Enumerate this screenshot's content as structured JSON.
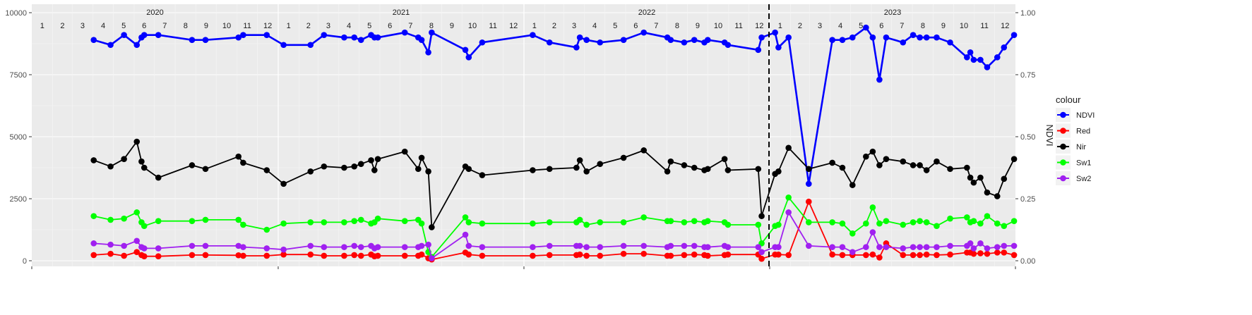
{
  "chart_data": {
    "type": "line",
    "xlabel": "",
    "ylabel": "",
    "y2label": "NDVI",
    "ylim": [
      0,
      10000
    ],
    "y2lim": [
      0,
      1
    ],
    "yticks": [
      0,
      2500,
      5000,
      7500,
      10000
    ],
    "y2ticks": [
      "0.00",
      "0.25",
      "0.50",
      "0.75",
      "1.00"
    ],
    "years": [
      "2020",
      "2021",
      "2022",
      "2023"
    ],
    "month_labels": [
      "1",
      "2",
      "3",
      "4",
      "5",
      "6",
      "7",
      "8",
      "9",
      "10",
      "11",
      "12"
    ],
    "xlim": [
      "2020-01-01",
      "2024-01-01"
    ],
    "vline": "2022-12-31",
    "legend": {
      "title": "colour",
      "position": "right"
    },
    "grid": true,
    "x": [
      "2020-04-02",
      "2020-04-27",
      "2020-05-17",
      "2020-06-05",
      "2020-06-12",
      "2020-06-16",
      "2020-07-07",
      "2020-08-26",
      "2020-09-15",
      "2020-11-03",
      "2020-11-10",
      "2020-12-15",
      "2021-01-09",
      "2021-02-18",
      "2021-03-10",
      "2021-04-09",
      "2021-04-24",
      "2021-05-04",
      "2021-05-19",
      "2021-05-24",
      "2021-05-29",
      "2021-07-08",
      "2021-07-28",
      "2021-08-02",
      "2021-08-12",
      "2021-08-17",
      "2021-10-06",
      "2021-10-11",
      "2021-10-31",
      "2022-01-14",
      "2022-02-08",
      "2022-03-20",
      "2022-03-25",
      "2022-04-04",
      "2022-04-24",
      "2022-05-29",
      "2022-06-28",
      "2022-08-02",
      "2022-08-07",
      "2022-08-27",
      "2022-09-11",
      "2022-09-26",
      "2022-10-01",
      "2022-10-26",
      "2022-10-31",
      "2022-12-15",
      "2022-12-20",
      "2023-01-09",
      "2023-01-14",
      "2023-01-29",
      "2023-02-28",
      "2023-04-04",
      "2023-04-19",
      "2023-05-04",
      "2023-05-24",
      "2023-06-03",
      "2023-06-13",
      "2023-06-23",
      "2023-07-18",
      "2023-08-02",
      "2023-08-12",
      "2023-08-22",
      "2023-09-06",
      "2023-09-26",
      "2023-10-21",
      "2023-10-26",
      "2023-10-31",
      "2023-11-10",
      "2023-11-20",
      "2023-12-05",
      "2023-12-15",
      "2023-12-30"
    ],
    "series": [
      {
        "name": "NDVI",
        "color": "#0000ff",
        "axis": "right",
        "values": [
          0.89,
          0.87,
          0.91,
          0.87,
          0.9,
          0.91,
          0.91,
          0.89,
          0.89,
          0.9,
          0.91,
          0.91,
          0.87,
          0.87,
          0.91,
          0.9,
          0.9,
          0.89,
          0.91,
          0.9,
          0.9,
          0.92,
          0.9,
          0.89,
          0.84,
          0.92,
          0.85,
          0.82,
          0.88,
          0.91,
          0.88,
          0.86,
          0.9,
          0.89,
          0.88,
          0.89,
          0.92,
          0.9,
          0.89,
          0.88,
          0.89,
          0.88,
          0.89,
          0.88,
          0.87,
          0.85,
          0.9,
          0.92,
          0.86,
          0.9,
          0.31,
          0.89,
          0.89,
          0.9,
          0.94,
          0.9,
          0.73,
          0.9,
          0.88,
          0.91,
          0.9,
          0.9,
          0.9,
          0.88,
          0.82,
          0.84,
          0.81,
          0.81,
          0.78,
          0.82,
          0.86,
          0.91
        ]
      },
      {
        "name": "Red",
        "color": "#ff0000",
        "axis": "left",
        "values": [
          230,
          280,
          200,
          350,
          230,
          180,
          180,
          230,
          230,
          220,
          200,
          200,
          250,
          250,
          200,
          200,
          230,
          200,
          250,
          180,
          200,
          200,
          200,
          250,
          100,
          50,
          330,
          250,
          200,
          200,
          230,
          230,
          250,
          200,
          200,
          280,
          280,
          200,
          200,
          230,
          250,
          230,
          200,
          230,
          250,
          250,
          80,
          250,
          250,
          230,
          2380,
          250,
          230,
          230,
          230,
          250,
          130,
          700,
          230,
          230,
          230,
          250,
          230,
          250,
          330,
          330,
          280,
          300,
          280,
          330,
          330,
          230
        ]
      },
      {
        "name": "Nir",
        "color": "#000000",
        "axis": "left",
        "values": [
          4050,
          3800,
          4100,
          4800,
          4000,
          3750,
          3350,
          3850,
          3700,
          4200,
          3950,
          3650,
          3100,
          3600,
          3800,
          3750,
          3800,
          3900,
          4050,
          3650,
          4100,
          4400,
          3700,
          4150,
          3600,
          1350,
          3800,
          3700,
          3450,
          3650,
          3700,
          3750,
          4050,
          3600,
          3900,
          4150,
          4450,
          3600,
          4000,
          3850,
          3750,
          3650,
          3700,
          4100,
          3650,
          3700,
          1800,
          3500,
          3600,
          4550,
          3700,
          3950,
          3750,
          3050,
          4200,
          4400,
          3850,
          4100,
          4000,
          3850,
          3850,
          3650,
          4000,
          3700,
          3750,
          3350,
          3150,
          3350,
          2750,
          2600,
          3300,
          4100
        ]
      },
      {
        "name": "Sw1",
        "color": "#00ff00",
        "axis": "left",
        "values": [
          1800,
          1650,
          1700,
          1950,
          1550,
          1400,
          1600,
          1600,
          1650,
          1650,
          1450,
          1250,
          1500,
          1550,
          1550,
          1550,
          1600,
          1650,
          1500,
          1550,
          1700,
          1600,
          1650,
          1500,
          350,
          150,
          1750,
          1550,
          1500,
          1500,
          1550,
          1550,
          1650,
          1450,
          1550,
          1550,
          1750,
          1600,
          1600,
          1550,
          1600,
          1550,
          1600,
          1550,
          1450,
          1450,
          700,
          1400,
          1450,
          2550,
          1550,
          1550,
          1500,
          1100,
          1500,
          2150,
          1500,
          1600,
          1450,
          1550,
          1600,
          1550,
          1400,
          1700,
          1750,
          1550,
          1600,
          1500,
          1800,
          1500,
          1400,
          1600
        ]
      },
      {
        "name": "Sw2",
        "color": "#a020f0",
        "axis": "left",
        "values": [
          700,
          650,
          600,
          800,
          550,
          500,
          500,
          600,
          600,
          600,
          550,
          500,
          450,
          600,
          550,
          550,
          600,
          550,
          600,
          500,
          550,
          550,
          550,
          600,
          650,
          100,
          1050,
          600,
          550,
          550,
          600,
          600,
          600,
          550,
          550,
          600,
          600,
          550,
          600,
          600,
          600,
          550,
          550,
          600,
          550,
          550,
          350,
          550,
          550,
          1950,
          600,
          550,
          550,
          350,
          550,
          1150,
          550,
          550,
          500,
          550,
          550,
          550,
          550,
          600,
          600,
          700,
          500,
          700,
          500,
          550,
          600,
          600
        ]
      }
    ]
  }
}
